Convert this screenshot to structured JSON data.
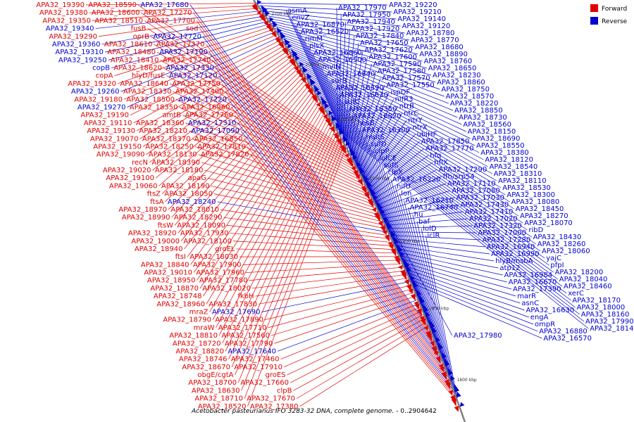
{
  "caption": {
    "species": "Acetobacter pasteurianus IFO 3283-32 DNA, complete genome.",
    "range": " - 0..2904642"
  },
  "legend": [
    {
      "label": "Forward",
      "color": "#e00000"
    },
    {
      "label": "Reverse",
      "color": "#0000d0"
    }
  ],
  "colors": {
    "forward": "#e00000",
    "reverse": "#0000d0",
    "backbone": "#808080"
  },
  "kbp_ticks": [
    "2100 kbp",
    "2050 kbp",
    "2000 kbp",
    "1950 kbp",
    "1900 kbp",
    "1850 kbp",
    "1800 kbp"
  ],
  "left_labels": [
    {
      "text": "APA32_19390",
      "strand": "forward"
    },
    {
      "text": "APA32_19380",
      "strand": "forward"
    },
    {
      "text": "APA32_19350",
      "strand": "forward"
    },
    {
      "text": "APA32_19340",
      "strand": "reverse"
    },
    {
      "text": "APA32_19290",
      "strand": "forward"
    },
    {
      "text": "APA32_19360",
      "strand": "reverse"
    },
    {
      "text": "APA32_19310",
      "strand": "reverse"
    },
    {
      "text": "APA32_19250",
      "strand": "reverse"
    },
    {
      "text": "copB",
      "strand": "reverse"
    },
    {
      "text": "copA",
      "strand": "forward"
    },
    {
      "text": "APA32_19320",
      "strand": "forward"
    },
    {
      "text": "APA32_19260",
      "strand": "reverse"
    },
    {
      "text": "APA32_19180",
      "strand": "forward"
    },
    {
      "text": "APA32_19270",
      "strand": "reverse"
    },
    {
      "text": "APA32_19190",
      "strand": "forward"
    },
    {
      "text": "APA32_19110",
      "strand": "forward"
    },
    {
      "text": "APA32_19130",
      "strand": "forward"
    },
    {
      "text": "APA32_19070",
      "strand": "forward"
    },
    {
      "text": "APA32_19150",
      "strand": "forward"
    },
    {
      "text": "APA32_19090",
      "strand": "forward"
    },
    {
      "text": "recN",
      "strand": "forward"
    },
    {
      "text": "APA32_19020",
      "strand": "forward"
    },
    {
      "text": "APA32_19100",
      "strand": "forward"
    },
    {
      "text": "APA32_19060",
      "strand": "forward"
    },
    {
      "text": "ftsZ",
      "strand": "forward"
    },
    {
      "text": "ftsA",
      "strand": "forward"
    },
    {
      "text": "APA32_18970",
      "strand": "forward"
    },
    {
      "text": "APA32_18990",
      "strand": "forward"
    },
    {
      "text": "ftsW",
      "strand": "forward"
    },
    {
      "text": "APA32_18920",
      "strand": "forward"
    },
    {
      "text": "APA32_19000",
      "strand": "forward"
    },
    {
      "text": "APA32_18940",
      "strand": "forward"
    },
    {
      "text": "ftsI",
      "strand": "forward"
    },
    {
      "text": "APA32_18840",
      "strand": "forward"
    },
    {
      "text": "APA32_19010",
      "strand": "forward"
    },
    {
      "text": "APA32_18950",
      "strand": "forward"
    },
    {
      "text": "APA32_18870",
      "strand": "forward"
    },
    {
      "text": "APA32_18748",
      "strand": "forward"
    },
    {
      "text": "APA32_18960",
      "strand": "forward"
    },
    {
      "text": "mraZ",
      "strand": "forward"
    },
    {
      "text": "APA32_18790",
      "strand": "forward"
    },
    {
      "text": "mraW",
      "strand": "forward"
    },
    {
      "text": "APA32_18810",
      "strand": "forward"
    },
    {
      "text": "APA32_18720",
      "strand": "forward"
    },
    {
      "text": "APA32_18820",
      "strand": "forward"
    },
    {
      "text": "APA32_18746",
      "strand": "forward"
    },
    {
      "text": "APA32_18670",
      "strand": "forward"
    },
    {
      "text": "obgE/cgtA",
      "strand": "forward"
    },
    {
      "text": "APA32_18700",
      "strand": "forward"
    },
    {
      "text": "APA32_18630",
      "strand": "forward"
    },
    {
      "text": "APA32_18710",
      "strand": "forward"
    },
    {
      "text": "APA32_18520",
      "strand": "forward"
    },
    {
      "text": "APA32_18590",
      "strand": "forward"
    },
    {
      "text": "APA32_18600",
      "strand": "forward"
    },
    {
      "text": "APA32_18510",
      "strand": "forward"
    },
    {
      "text": "fusB",
      "strand": "forward"
    },
    {
      "text": "oprB",
      "strand": "forward"
    },
    {
      "text": "APA32_18610",
      "strand": "forward"
    },
    {
      "text": "APA32_18480",
      "strand": "forward"
    },
    {
      "text": "APA32_18410",
      "strand": "forward"
    },
    {
      "text": "APA32_18620",
      "strand": "forward"
    },
    {
      "text": "hlyD/fusE",
      "strand": "forward"
    },
    {
      "text": "APA32_18640",
      "strand": "forward"
    },
    {
      "text": "APA32_18330",
      "strand": "forward"
    },
    {
      "text": "APA32_18500",
      "strand": "forward"
    },
    {
      "text": "APA32_18350",
      "strand": "forward"
    },
    {
      "text": "amtB",
      "strand": "forward"
    },
    {
      "text": "APA32_18360",
      "strand": "forward"
    },
    {
      "text": "APA32_18210",
      "strand": "forward"
    },
    {
      "text": "APA32_18370",
      "strand": "forward"
    },
    {
      "text": "APA32_18250",
      "strand": "forward"
    },
    {
      "text": "APA32_18130",
      "strand": "forward"
    },
    {
      "text": "APA32_18390",
      "strand": "forward"
    },
    {
      "text": "APA32_18180",
      "strand": "forward"
    },
    {
      "text": "apaG",
      "strand": "forward"
    },
    {
      "text": "APA32_18190",
      "strand": "forward"
    },
    {
      "text": "APA32_18050",
      "strand": "forward"
    },
    {
      "text": "APA32_18240",
      "strand": "reverse"
    },
    {
      "text": "APA32_18010",
      "strand": "forward"
    },
    {
      "text": "APA32_18290",
      "strand": "forward"
    },
    {
      "text": "APA32_18090",
      "strand": "forward"
    },
    {
      "text": "APA32_17930",
      "strand": "forward"
    },
    {
      "text": "APA32_18100",
      "strand": "forward"
    },
    {
      "text": "groEL",
      "strand": "forward"
    },
    {
      "text": "APA32_18030",
      "strand": "forward"
    },
    {
      "text": "APA32_17900",
      "strand": "forward"
    },
    {
      "text": "APA32_17960",
      "strand": "forward"
    },
    {
      "text": "APA32_17780",
      "strand": "forward"
    },
    {
      "text": "APA32_18020",
      "strand": "forward"
    },
    {
      "text": "fkbH",
      "strand": "forward"
    },
    {
      "text": "APA32_17830",
      "strand": "forward"
    },
    {
      "text": "APA32_17690",
      "strand": "reverse"
    },
    {
      "text": "APA32_17890",
      "strand": "forward"
    },
    {
      "text": "APA32_17710",
      "strand": "forward"
    },
    {
      "text": "APA32_17560",
      "strand": "forward"
    },
    {
      "text": "APA32_17790",
      "strand": "forward"
    },
    {
      "text": "APA32_17640",
      "strand": "reverse"
    },
    {
      "text": "APA32_17460",
      "strand": "forward"
    },
    {
      "text": "APA32_17910",
      "strand": "forward"
    },
    {
      "text": "groES",
      "strand": "forward"
    },
    {
      "text": "APA32_17660",
      "strand": "forward"
    },
    {
      "text": "clpB",
      "strand": "forward"
    },
    {
      "text": "APA32_17670",
      "strand": "forward"
    },
    {
      "text": "APA32_17380",
      "strand": "forward"
    },
    {
      "text": "APA32_17680",
      "strand": "reverse"
    },
    {
      "text": "APA32_17270",
      "strand": "forward"
    },
    {
      "text": "APA32_17700",
      "strand": "forward"
    },
    {
      "text": "sod",
      "strand": "forward"
    },
    {
      "text": "APA32_17720",
      "strand": "reverse"
    },
    {
      "text": "APA32_17370",
      "strand": "forward"
    },
    {
      "text": "APA32_17190",
      "strand": "reverse"
    },
    {
      "text": "APA32_17740",
      "strand": "forward"
    },
    {
      "text": "APA32_17330",
      "strand": "reverse"
    },
    {
      "text": "APA32_17120",
      "strand": "reverse"
    },
    {
      "text": "APA32_17750",
      "strand": "forward"
    },
    {
      "text": "APA32_17400",
      "strand": "forward"
    },
    {
      "text": "APA32_17220",
      "strand": "reverse"
    },
    {
      "text": "APA32_16960",
      "strand": "forward"
    },
    {
      "text": "APA32_17760",
      "strand": "forward"
    },
    {
      "text": "APA32_17310",
      "strand": "reverse"
    },
    {
      "text": "APA32_17090",
      "strand": "reverse"
    },
    {
      "text": "APA32_16850",
      "strand": "forward"
    },
    {
      "text": "APA32_17810",
      "strand": "forward"
    },
    {
      "text": "APA32_17820",
      "strand": "forward"
    }
  ],
  "right_labels": [
    {
      "text": "APA32_19220",
      "strand": "reverse"
    },
    {
      "text": "APA32_19210",
      "strand": "reverse"
    },
    {
      "text": "APA32_19140",
      "strand": "reverse"
    },
    {
      "text": "APA32_19120",
      "strand": "reverse"
    },
    {
      "text": "APA32_18780",
      "strand": "reverse"
    },
    {
      "text": "APA32_18770",
      "strand": "reverse"
    },
    {
      "text": "APA32_18680",
      "strand": "reverse"
    },
    {
      "text": "APA32_18890",
      "strand": "reverse"
    },
    {
      "text": "APA32_18760",
      "strand": "reverse"
    },
    {
      "text": "APA32_18650",
      "strand": "reverse"
    },
    {
      "text": "APA32_18230",
      "strand": "reverse"
    },
    {
      "text": "APA32_18860",
      "strand": "reverse"
    },
    {
      "text": "APA32_18750",
      "strand": "reverse"
    },
    {
      "text": "APA32_18570",
      "strand": "reverse"
    },
    {
      "text": "APA32_18220",
      "strand": "reverse"
    },
    {
      "text": "APA32_18850",
      "strand": "reverse"
    },
    {
      "text": "APA32_18730",
      "strand": "reverse"
    },
    {
      "text": "APA32_18560",
      "strand": "reverse"
    },
    {
      "text": "APA32_18150",
      "strand": "reverse"
    },
    {
      "text": "APA32_18690",
      "strand": "reverse"
    },
    {
      "text": "APA32_18550",
      "strand": "reverse"
    },
    {
      "text": "APA32_18380",
      "strand": "reverse"
    },
    {
      "text": "APA32_18120",
      "strand": "reverse"
    },
    {
      "text": "APA32_18540",
      "strand": "reverse"
    },
    {
      "text": "APA32_18310",
      "strand": "reverse"
    },
    {
      "text": "APA32_18110",
      "strand": "reverse"
    },
    {
      "text": "APA32_18530",
      "strand": "reverse"
    },
    {
      "text": "APA32_18300",
      "strand": "reverse"
    },
    {
      "text": "APA32_18080",
      "strand": "reverse"
    },
    {
      "text": "APA32_18450",
      "strand": "reverse"
    },
    {
      "text": "APA32_18270",
      "strand": "reverse"
    },
    {
      "text": "APA32_18070",
      "strand": "reverse"
    },
    {
      "text": "ribD",
      "strand": "reverse"
    },
    {
      "text": "APA32_18430",
      "strand": "reverse"
    },
    {
      "text": "APA32_18260",
      "strand": "reverse"
    },
    {
      "text": "APA32_18060",
      "strand": "reverse"
    },
    {
      "text": "yajC",
      "strand": "reverse"
    },
    {
      "text": "pfpI",
      "strand": "reverse"
    },
    {
      "text": "APA32_18200",
      "strand": "reverse"
    },
    {
      "text": "APA32_18040",
      "strand": "reverse"
    },
    {
      "text": "APA32_18460",
      "strand": "reverse"
    },
    {
      "text": "xerC",
      "strand": "reverse"
    },
    {
      "text": "APA32_18170",
      "strand": "reverse"
    },
    {
      "text": "APA32_18000",
      "strand": "reverse"
    },
    {
      "text": "APA32_18160",
      "strand": "reverse"
    },
    {
      "text": "APA32_17990",
      "strand": "reverse"
    },
    {
      "text": "APA32_18140",
      "strand": "reverse"
    },
    {
      "text": "APA32_17980",
      "strand": "reverse"
    },
    {
      "text": "APA32_17970",
      "strand": "reverse"
    },
    {
      "text": "APA32_17950",
      "strand": "reverse"
    },
    {
      "text": "APA32_17940",
      "strand": "reverse"
    },
    {
      "text": "APA32_17920",
      "strand": "reverse"
    },
    {
      "text": "APA32_17840",
      "strand": "reverse"
    },
    {
      "text": "APA32_17650",
      "strand": "reverse"
    },
    {
      "text": "APA32_17620",
      "strand": "reverse"
    },
    {
      "text": "APA32_17600",
      "strand": "reverse"
    },
    {
      "text": "APA32_17590",
      "strand": "reverse"
    },
    {
      "text": "APA32_17580",
      "strand": "reverse"
    },
    {
      "text": "APA32_17570",
      "strand": "reverse"
    },
    {
      "text": "APA32_17550",
      "strand": "reverse"
    },
    {
      "text": "ispDF",
      "strand": "reverse"
    },
    {
      "text": "nifR3",
      "strand": "reverse"
    },
    {
      "text": "ntrB",
      "strand": "reverse"
    },
    {
      "text": "ntrC",
      "strand": "reverse"
    },
    {
      "text": "ntrY",
      "strand": "reverse"
    },
    {
      "text": "ntrX",
      "strand": "reverse"
    },
    {
      "text": "ubiHF",
      "strand": "reverse"
    },
    {
      "text": "APA32_17850",
      "strand": "reverse"
    },
    {
      "text": "APA32_17770",
      "strand": "reverse"
    },
    {
      "text": "hfq",
      "strand": "reverse"
    },
    {
      "text": "hflX",
      "strand": "reverse"
    },
    {
      "text": "APA32_17290",
      "strand": "reverse"
    },
    {
      "text": "ffh/srp54",
      "strand": "reverse"
    },
    {
      "text": "APA32_17110",
      "strand": "reverse"
    },
    {
      "text": "APA32_17080",
      "strand": "reverse"
    },
    {
      "text": "APA32_17030",
      "strand": "reverse"
    },
    {
      "text": "APA32_17430",
      "strand": "reverse"
    },
    {
      "text": "APA32_17410",
      "strand": "reverse"
    },
    {
      "text": "APA32_17020",
      "strand": "reverse"
    },
    {
      "text": "APA32_17320",
      "strand": "reverse"
    },
    {
      "text": "APA32_17000",
      "strand": "reverse"
    },
    {
      "text": "APA32_17280",
      "strand": "reverse"
    },
    {
      "text": "APA32_16940",
      "strand": "reverse"
    },
    {
      "text": "APA32_16990",
      "strand": "reverse"
    },
    {
      "text": "hlyB/msbA",
      "strand": "reverse"
    },
    {
      "text": "atp12",
      "strand": "reverse"
    },
    {
      "text": "APA32_16984",
      "strand": "reverse"
    },
    {
      "text": "APA32_16670",
      "strand": "reverse"
    },
    {
      "text": "APA32_17390",
      "strand": "reverse"
    },
    {
      "text": "marR",
      "strand": "reverse"
    },
    {
      "text": "asnC",
      "strand": "reverse"
    },
    {
      "text": "APA32_16630",
      "strand": "reverse"
    },
    {
      "text": "engA",
      "strand": "reverse"
    },
    {
      "text": "ompR",
      "strand": "reverse"
    },
    {
      "text": "APA32_16880",
      "strand": "reverse"
    },
    {
      "text": "APA32_16570",
      "strand": "reverse"
    },
    {
      "text": "asmA",
      "strand": "reverse"
    },
    {
      "text": "envZ",
      "strand": "reverse"
    },
    {
      "text": "APA32_16870",
      "strand": "reverse"
    },
    {
      "text": "APA32_16520",
      "strand": "reverse"
    },
    {
      "text": "rimM",
      "strand": "reverse"
    },
    {
      "text": "plsX",
      "strand": "reverse"
    },
    {
      "text": "APA32_16860",
      "strand": "reverse"
    },
    {
      "text": "APA32_16500",
      "strand": "reverse"
    },
    {
      "text": "mviN",
      "strand": "reverse"
    },
    {
      "text": "APA32_16840",
      "strand": "reverse"
    },
    {
      "text": "surB",
      "strand": "reverse"
    },
    {
      "text": "APA32_16390",
      "strand": "reverse"
    },
    {
      "text": "APA32_16830",
      "strand": "reverse"
    },
    {
      "text": "sufC",
      "strand": "reverse"
    },
    {
      "text": "APA32_16350",
      "strand": "reverse"
    },
    {
      "text": "APA32_16820",
      "strand": "reverse"
    },
    {
      "text": "hesB",
      "strand": "reverse"
    },
    {
      "text": "APA32_16300",
      "strand": "reverse"
    },
    {
      "text": "mutS",
      "strand": "reverse"
    },
    {
      "text": "sufD",
      "strand": "reverse"
    },
    {
      "text": "clpP",
      "strand": "reverse"
    },
    {
      "text": "lolCE",
      "strand": "reverse"
    },
    {
      "text": "sufS",
      "strand": "reverse"
    },
    {
      "text": "clpX",
      "strand": "reverse"
    },
    {
      "text": "APA32_16220",
      "strand": "reverse"
    },
    {
      "text": "nifU",
      "strand": "reverse"
    },
    {
      "text": "lon",
      "strand": "reverse"
    },
    {
      "text": "APA32_16210",
      "strand": "reverse"
    },
    {
      "text": "APA32_16740",
      "strand": "reverse"
    },
    {
      "text": "hu",
      "strand": "reverse"
    },
    {
      "text": "baf",
      "strand": "reverse"
    },
    {
      "text": "lolD",
      "strand": "reverse"
    },
    {
      "text": "iclR",
      "strand": "reverse"
    }
  ]
}
